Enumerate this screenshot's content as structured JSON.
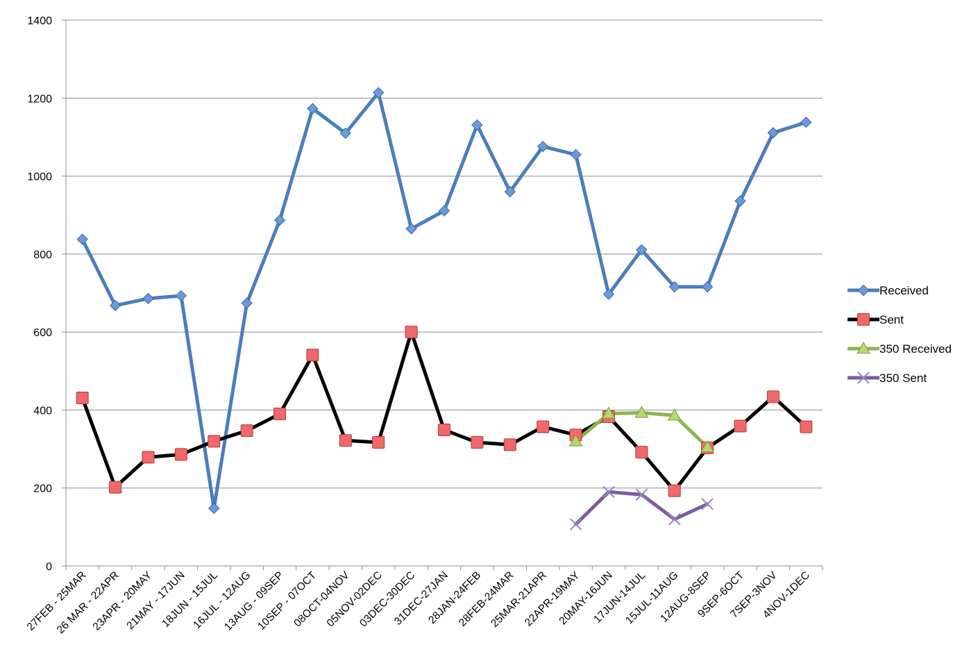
{
  "chart_data": {
    "type": "line",
    "categories": [
      "27FEB - 25MAR",
      "26 MAR - 22APR",
      "23APR - 20MAY",
      "21MAY - 17JUN",
      "18JUN - 15JUL",
      "16JUL - 12AUG",
      "13AUG - 09SEP",
      "10SEP - 07OCT",
      "08OCT-04NOV",
      "05NOV-02DEC",
      "03DEC-30DEC",
      "31DEC-27JAN",
      "28JAN-24FEB",
      "28FEB-24MAR",
      "25MAR-21APR",
      "22APR-19MAY",
      "20MAY-16JUN",
      "17JUN-14JUL",
      "15JUL-11AUG",
      "12AUG-8SEP",
      "9SEP-6OCT",
      "7SEP-3NOV",
      "4NOV-1DEC"
    ],
    "ylim": [
      0,
      1400
    ],
    "yticks": [
      "0",
      "200",
      "400",
      "600",
      "800",
      "1000",
      "1200",
      "1400"
    ],
    "grid": true,
    "legend_position": "right",
    "series": [
      {
        "name": "Received",
        "color": "#4a7ebb",
        "marker": "diamond",
        "values": [
          838,
          668,
          686,
          693,
          148,
          674,
          887,
          1173,
          1110,
          1214,
          865,
          911,
          1131,
          960,
          1076,
          1055,
          697,
          811,
          716,
          716,
          936,
          1111,
          1138
        ]
      },
      {
        "name": "Sent",
        "color": "#000000",
        "marker": "square",
        "values": [
          431,
          202,
          279,
          286,
          320,
          347,
          390,
          541,
          322,
          317,
          600,
          349,
          317,
          311,
          357,
          336,
          383,
          292,
          193,
          303,
          359,
          434,
          357
        ]
      },
      {
        "name": "350 Received",
        "color": "#8db452",
        "marker": "triangle",
        "values": [
          null,
          null,
          null,
          null,
          null,
          null,
          null,
          null,
          null,
          null,
          null,
          null,
          null,
          null,
          null,
          320,
          391,
          393,
          386,
          305,
          null,
          null,
          null
        ]
      },
      {
        "name": "350 Sent",
        "color": "#7d5b9e",
        "marker": "x",
        "values": [
          null,
          null,
          null,
          null,
          null,
          null,
          null,
          null,
          null,
          null,
          null,
          null,
          null,
          null,
          null,
          107,
          190,
          183,
          120,
          159,
          null,
          null,
          null
        ]
      }
    ]
  }
}
